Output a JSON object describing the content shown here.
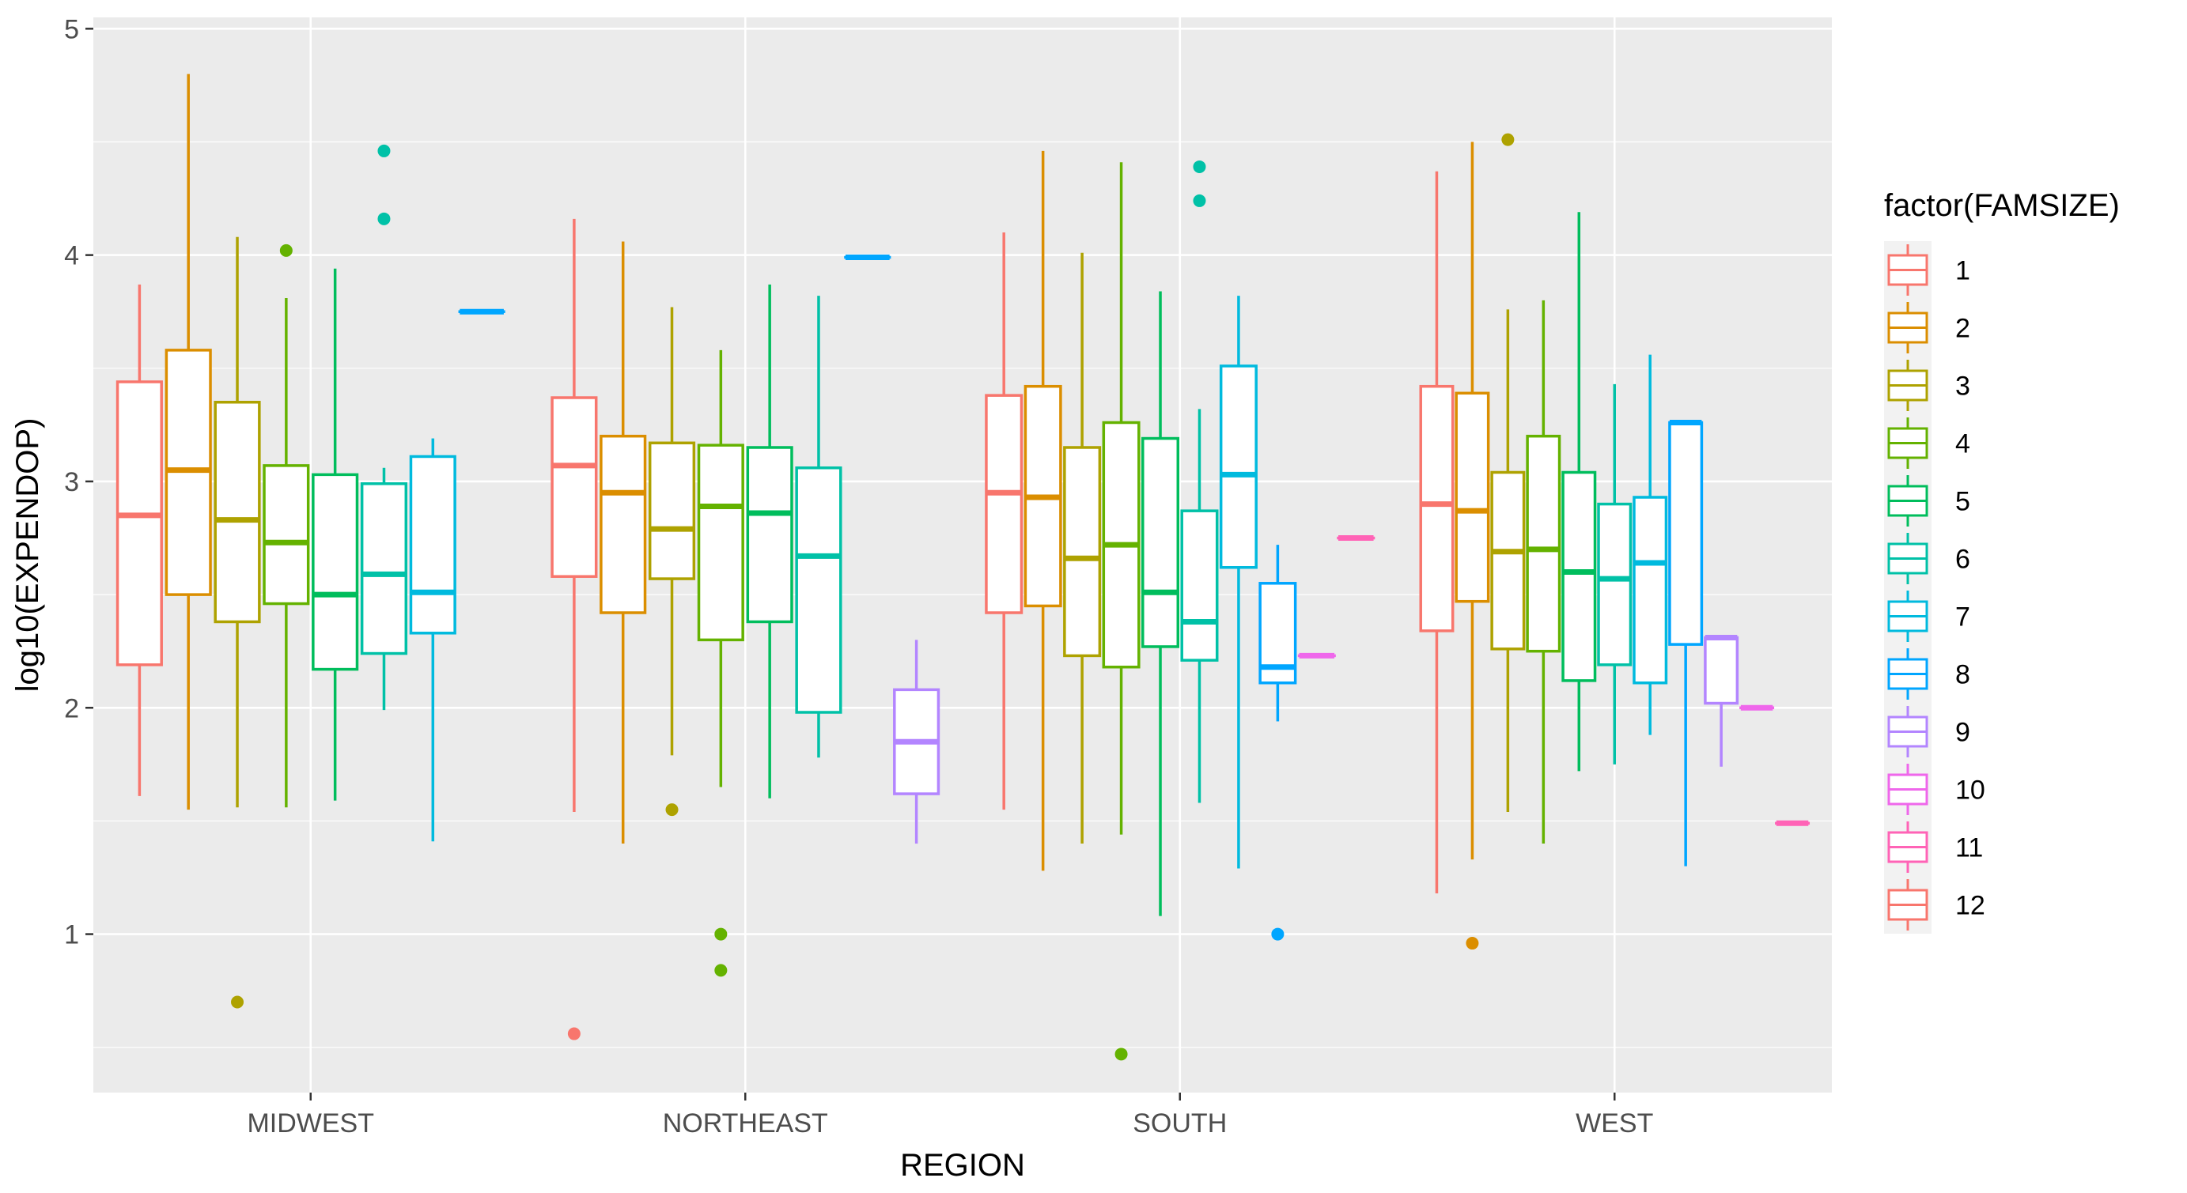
{
  "chart_data": {
    "type": "boxplot",
    "xlabel": "REGION",
    "ylabel": "log10(EXPENDOP)",
    "ylim": [
      0.3,
      5.05
    ],
    "yticks": [
      1,
      2,
      3,
      4,
      5
    ],
    "grid": true,
    "legend_title": "factor(FAMSIZE)",
    "legend_position": "right",
    "categories": [
      "MIDWEST",
      "NORTHEAST",
      "SOUTH",
      "WEST"
    ],
    "series": [
      {
        "name": "1",
        "color": "#F8766D",
        "boxes": [
          {
            "region": "MIDWEST",
            "lower": 1.61,
            "q1": 2.19,
            "median": 2.85,
            "q3": 3.44,
            "upper": 3.87,
            "outliers": []
          },
          {
            "region": "NORTHEAST",
            "lower": 1.54,
            "q1": 2.58,
            "median": 3.07,
            "q3": 3.37,
            "upper": 4.16,
            "outliers": [
              0.56
            ]
          },
          {
            "region": "SOUTH",
            "lower": 1.55,
            "q1": 2.42,
            "median": 2.95,
            "q3": 3.38,
            "upper": 4.1,
            "outliers": []
          },
          {
            "region": "WEST",
            "lower": 1.18,
            "q1": 2.34,
            "median": 2.9,
            "q3": 3.42,
            "upper": 4.37,
            "outliers": []
          }
        ]
      },
      {
        "name": "2",
        "color": "#DB8E00",
        "boxes": [
          {
            "region": "MIDWEST",
            "lower": 1.55,
            "q1": 2.5,
            "median": 3.05,
            "q3": 3.58,
            "upper": 4.8,
            "outliers": []
          },
          {
            "region": "NORTHEAST",
            "lower": 1.4,
            "q1": 2.42,
            "median": 2.95,
            "q3": 3.2,
            "upper": 4.06,
            "outliers": []
          },
          {
            "region": "SOUTH",
            "lower": 1.28,
            "q1": 2.45,
            "median": 2.93,
            "q3": 3.42,
            "upper": 4.46,
            "outliers": []
          },
          {
            "region": "WEST",
            "lower": 1.33,
            "q1": 2.47,
            "median": 2.87,
            "q3": 3.39,
            "upper": 4.5,
            "outliers": [
              0.96
            ]
          }
        ]
      },
      {
        "name": "3",
        "color": "#AEA200",
        "boxes": [
          {
            "region": "MIDWEST",
            "lower": 1.56,
            "q1": 2.38,
            "median": 2.83,
            "q3": 3.35,
            "upper": 4.08,
            "outliers": [
              0.7
            ]
          },
          {
            "region": "NORTHEAST",
            "lower": 1.79,
            "q1": 2.57,
            "median": 2.79,
            "q3": 3.17,
            "upper": 3.77,
            "outliers": [
              1.55
            ]
          },
          {
            "region": "SOUTH",
            "lower": 1.4,
            "q1": 2.23,
            "median": 2.66,
            "q3": 3.15,
            "upper": 4.01,
            "outliers": []
          },
          {
            "region": "WEST",
            "lower": 1.54,
            "q1": 2.26,
            "median": 2.69,
            "q3": 3.04,
            "upper": 3.76,
            "outliers": [
              4.51
            ]
          }
        ]
      },
      {
        "name": "4",
        "color": "#64B200",
        "boxes": [
          {
            "region": "MIDWEST",
            "lower": 1.56,
            "q1": 2.46,
            "median": 2.73,
            "q3": 3.07,
            "upper": 3.81,
            "outliers": [
              4.02
            ]
          },
          {
            "region": "NORTHEAST",
            "lower": 1.65,
            "q1": 2.3,
            "median": 2.89,
            "q3": 3.16,
            "upper": 3.58,
            "outliers": [
              1.0,
              0.84
            ]
          },
          {
            "region": "SOUTH",
            "lower": 1.44,
            "q1": 2.18,
            "median": 2.72,
            "q3": 3.26,
            "upper": 4.41,
            "outliers": [
              0.47
            ]
          },
          {
            "region": "WEST",
            "lower": 1.4,
            "q1": 2.25,
            "median": 2.7,
            "q3": 3.2,
            "upper": 3.8,
            "outliers": []
          }
        ]
      },
      {
        "name": "5",
        "color": "#00BD5C",
        "boxes": [
          {
            "region": "MIDWEST",
            "lower": 1.59,
            "q1": 2.17,
            "median": 2.5,
            "q3": 3.03,
            "upper": 3.94,
            "outliers": []
          },
          {
            "region": "NORTHEAST",
            "lower": 1.6,
            "q1": 2.38,
            "median": 2.86,
            "q3": 3.15,
            "upper": 3.87,
            "outliers": []
          },
          {
            "region": "SOUTH",
            "lower": 1.08,
            "q1": 2.27,
            "median": 2.51,
            "q3": 3.19,
            "upper": 3.84,
            "outliers": []
          },
          {
            "region": "WEST",
            "lower": 1.72,
            "q1": 2.12,
            "median": 2.6,
            "q3": 3.04,
            "upper": 4.19,
            "outliers": []
          }
        ]
      },
      {
        "name": "6",
        "color": "#00C1A7",
        "boxes": [
          {
            "region": "MIDWEST",
            "lower": 1.99,
            "q1": 2.24,
            "median": 2.59,
            "q3": 2.99,
            "upper": 3.06,
            "outliers": [
              4.46,
              4.16
            ]
          },
          {
            "region": "NORTHEAST",
            "lower": 1.78,
            "q1": 1.98,
            "median": 2.67,
            "q3": 3.06,
            "upper": 3.82,
            "outliers": []
          },
          {
            "region": "SOUTH",
            "lower": 1.58,
            "q1": 2.21,
            "median": 2.38,
            "q3": 2.87,
            "upper": 3.32,
            "outliers": [
              4.39,
              4.24
            ]
          },
          {
            "region": "WEST",
            "lower": 1.75,
            "q1": 2.19,
            "median": 2.57,
            "q3": 2.9,
            "upper": 3.43,
            "outliers": []
          }
        ]
      },
      {
        "name": "7",
        "color": "#00BADE",
        "boxes": [
          {
            "region": "MIDWEST",
            "lower": 1.41,
            "q1": 2.33,
            "median": 2.51,
            "q3": 3.11,
            "upper": 3.19,
            "outliers": []
          },
          {
            "region": "SOUTH",
            "lower": 1.29,
            "q1": 2.62,
            "median": 3.03,
            "q3": 3.51,
            "upper": 3.82,
            "outliers": []
          },
          {
            "region": "WEST",
            "lower": 1.88,
            "q1": 2.11,
            "median": 2.64,
            "q3": 2.93,
            "upper": 3.56,
            "outliers": []
          }
        ]
      },
      {
        "name": "8",
        "color": "#00A6FF",
        "boxes": [
          {
            "region": "MIDWEST",
            "lower": 3.75,
            "q1": 3.75,
            "median": 3.75,
            "q3": 3.75,
            "upper": 3.75,
            "outliers": []
          },
          {
            "region": "NORTHEAST",
            "lower": 3.99,
            "q1": 3.99,
            "median": 3.99,
            "q3": 3.99,
            "upper": 3.99,
            "outliers": []
          },
          {
            "region": "SOUTH",
            "lower": 1.94,
            "q1": 2.11,
            "median": 2.18,
            "q3": 2.55,
            "upper": 2.72,
            "outliers": [
              1.0
            ]
          },
          {
            "region": "WEST",
            "lower": 1.3,
            "q1": 2.28,
            "median": 3.26,
            "q3": 3.26,
            "upper": 3.26,
            "outliers": []
          }
        ]
      },
      {
        "name": "9",
        "color": "#B385FF",
        "boxes": [
          {
            "region": "NORTHEAST",
            "lower": 1.4,
            "q1": 1.62,
            "median": 1.85,
            "q3": 2.08,
            "upper": 2.3,
            "outliers": []
          },
          {
            "region": "WEST",
            "lower": 1.74,
            "q1": 2.02,
            "median": 2.31,
            "q3": 2.31,
            "upper": 2.31,
            "outliers": []
          }
        ]
      },
      {
        "name": "10",
        "color": "#EF67EB",
        "boxes": [
          {
            "region": "SOUTH",
            "lower": 2.23,
            "q1": 2.23,
            "median": 2.23,
            "q3": 2.23,
            "upper": 2.23,
            "outliers": []
          },
          {
            "region": "WEST",
            "lower": 2.0,
            "q1": 2.0,
            "median": 2.0,
            "q3": 2.0,
            "upper": 2.0,
            "outliers": []
          }
        ]
      },
      {
        "name": "11",
        "color": "#FF63B6",
        "boxes": [
          {
            "region": "SOUTH",
            "lower": 2.75,
            "q1": 2.75,
            "median": 2.75,
            "q3": 2.75,
            "upper": 2.75,
            "outliers": []
          },
          {
            "region": "WEST",
            "lower": 1.49,
            "q1": 1.49,
            "median": 1.49,
            "q3": 1.49,
            "upper": 1.49,
            "outliers": []
          }
        ]
      },
      {
        "name": "12",
        "color": "#F8766D",
        "boxes": []
      }
    ]
  }
}
